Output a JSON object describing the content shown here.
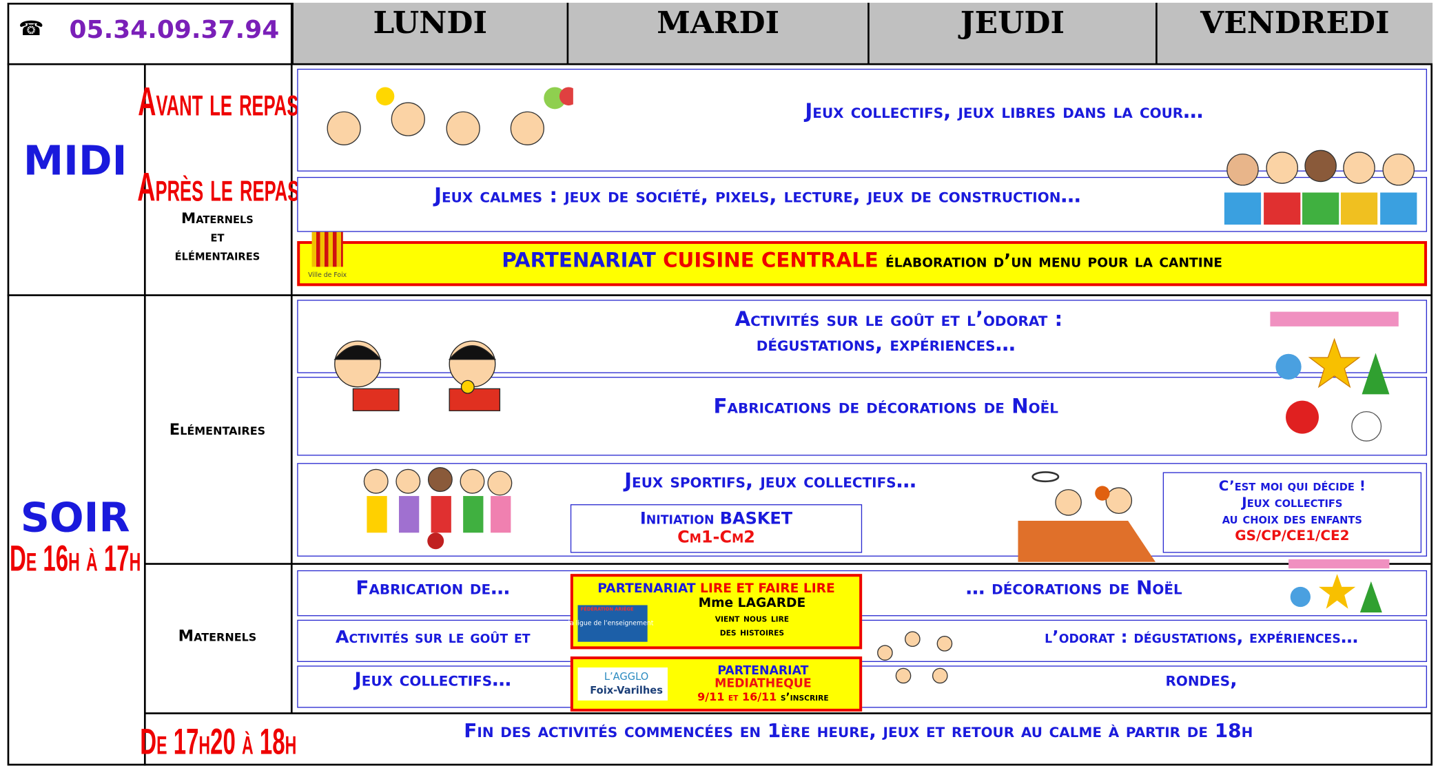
{
  "header": {
    "phone": "05.34.09.37.94",
    "days": [
      "LUNDI",
      "MARDI",
      "JEUDI",
      "VENDREDI"
    ]
  },
  "midi": {
    "label": "MIDI",
    "avant": "Avant le repas",
    "apres": "Après le repas",
    "public": [
      "Maternels",
      "et",
      "élémentaires"
    ],
    "activities": [
      "Jeux collectifs, jeux libres dans la cour…",
      "Jeux calmes : jeux de société, pixels, lecture, jeux de construction…"
    ],
    "partnership": {
      "prefix": "PARTENARIAT",
      "name": "CUISINE CENTRALE",
      "text": "élaboration d’un menu pour la cantine",
      "logo": "Ville de Foix"
    }
  },
  "soir": {
    "label": "SOIR",
    "time": "De 16h à 17h",
    "elementaires": {
      "label": "Elémentaires",
      "activities": [
        [
          "Activités sur le goût et l’odorat :",
          "dégustations, expériences…"
        ],
        "Fabrications de décorations de Noël",
        "Jeux sportifs, jeux collectifs…"
      ],
      "basket": {
        "title": "Initiation BASKET",
        "level": "Cm1-Cm2"
      },
      "choice": [
        "C’est moi qui décide !",
        "Jeux collectifs",
        "au choix des enfants",
        "GS/CP/CE1/CE2"
      ]
    },
    "maternels": {
      "label": "Maternels",
      "rows": [
        [
          "Fabrication de…",
          "… décorations de Noël"
        ],
        [
          "Activités sur le goût et",
          "l’odorat : dégustations, expériences…"
        ],
        [
          "Jeux collectifs…",
          "rondes,"
        ]
      ],
      "lire": {
        "prefix": "PARTENARIAT",
        "name": "LIRE ET FAIRE LIRE",
        "lines": [
          "Mme LAGARDE",
          "vient nous lire",
          "des histoires"
        ],
        "logo": [
          "FÉDÉRATION ARIÈGE",
          "la ligue de l’enseignement"
        ]
      },
      "mediatheque": {
        "lines": [
          "PARTENARIAT",
          "MEDIATHEQUE"
        ],
        "dates": "9/11 et 16/11",
        "suffix": "s’inscrire",
        "logo": [
          "L’AGGLO",
          "Foix-Varilhes"
        ]
      }
    }
  },
  "fin": {
    "time": "De 17h20 à 18h",
    "text": "Fin des activités commencées en 1ère heure, jeux et retour au calme à partir de 18h"
  }
}
